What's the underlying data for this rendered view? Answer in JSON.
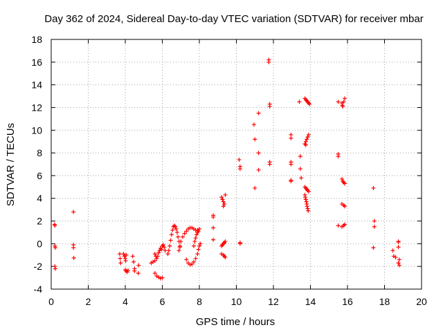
{
  "chart_data": {
    "type": "scatter",
    "title": "Day 362 of 2024, Sidereal Day-to-day VTEC variation (SDTVAR) for receiver mbar",
    "xlabel": "GPS time / hours",
    "ylabel": "SDTVAR / TECUs",
    "xlim": [
      0,
      20
    ],
    "ylim": [
      -4,
      18
    ],
    "xticks": [
      0,
      2,
      4,
      6,
      8,
      10,
      12,
      14,
      16,
      18,
      20
    ],
    "yticks": [
      -4,
      -2,
      0,
      2,
      4,
      6,
      8,
      10,
      12,
      14,
      16,
      18
    ],
    "grid": true,
    "marker": "+",
    "color": "#ff0000",
    "series": [
      {
        "name": "SDTVAR",
        "points": [
          [
            0.18,
            1.7
          ],
          [
            0.2,
            1.6
          ],
          [
            0.2,
            -0.2
          ],
          [
            0.22,
            -0.35
          ],
          [
            0.2,
            -2.0
          ],
          [
            0.22,
            -2.2
          ],
          [
            1.2,
            2.8
          ],
          [
            1.2,
            -0.1
          ],
          [
            1.2,
            -0.35
          ],
          [
            1.22,
            -1.25
          ],
          [
            3.7,
            -0.9
          ],
          [
            3.72,
            -1.3
          ],
          [
            3.75,
            -1.7
          ],
          [
            3.9,
            -0.9
          ],
          [
            3.95,
            -1.1
          ],
          [
            4.0,
            -1.3
          ],
          [
            4.02,
            -1.5
          ],
          [
            4.05,
            -1.0
          ],
          [
            4.0,
            -2.3
          ],
          [
            4.05,
            -2.4
          ],
          [
            4.1,
            -2.5
          ],
          [
            4.15,
            -2.35
          ],
          [
            4.4,
            -1.1
          ],
          [
            4.45,
            -1.6
          ],
          [
            4.5,
            -2.2
          ],
          [
            4.5,
            -2.4
          ],
          [
            4.7,
            -2.6
          ],
          [
            4.72,
            -1.9
          ],
          [
            5.4,
            -1.7
          ],
          [
            5.5,
            -1.6
          ],
          [
            5.6,
            -1.5
          ],
          [
            5.6,
            -2.6
          ],
          [
            5.7,
            -2.85
          ],
          [
            5.8,
            -2.95
          ],
          [
            5.9,
            -3.05
          ],
          [
            6.0,
            -3.0
          ],
          [
            5.6,
            -0.9
          ],
          [
            5.65,
            -1.1
          ],
          [
            5.7,
            -1.3
          ],
          [
            5.75,
            -1.1
          ],
          [
            5.8,
            -0.8
          ],
          [
            5.85,
            -0.6
          ],
          [
            5.9,
            -0.4
          ],
          [
            5.95,
            -0.5
          ],
          [
            6.0,
            -0.2
          ],
          [
            6.05,
            -0.1
          ],
          [
            6.1,
            -0.3
          ],
          [
            6.15,
            -0.6
          ],
          [
            6.3,
            -0.9
          ],
          [
            6.35,
            -0.6
          ],
          [
            6.4,
            -0.2
          ],
          [
            6.45,
            0.3
          ],
          [
            6.5,
            0.8
          ],
          [
            6.55,
            1.2
          ],
          [
            6.6,
            1.5
          ],
          [
            6.65,
            1.6
          ],
          [
            6.7,
            1.5
          ],
          [
            6.75,
            1.3
          ],
          [
            6.8,
            1.0
          ],
          [
            6.85,
            0.6
          ],
          [
            6.9,
            0.2
          ],
          [
            6.95,
            -0.3
          ],
          [
            6.9,
            -0.6
          ],
          [
            6.95,
            -0.2
          ],
          [
            7.0,
            0.2
          ],
          [
            7.1,
            0.6
          ],
          [
            7.2,
            0.9
          ],
          [
            7.3,
            1.1
          ],
          [
            7.4,
            1.3
          ],
          [
            7.5,
            1.4
          ],
          [
            7.6,
            1.4
          ],
          [
            7.7,
            1.3
          ],
          [
            7.8,
            1.2
          ],
          [
            7.9,
            1.2
          ],
          [
            8.0,
            1.3
          ],
          [
            7.3,
            -1.4
          ],
          [
            7.4,
            -1.7
          ],
          [
            7.5,
            -1.85
          ],
          [
            7.6,
            -1.8
          ],
          [
            7.7,
            -1.6
          ],
          [
            7.8,
            -1.3
          ],
          [
            7.9,
            -0.9
          ],
          [
            7.95,
            -0.5
          ],
          [
            8.0,
            -0.2
          ],
          [
            8.05,
            0.0
          ],
          [
            7.7,
            -0.2
          ],
          [
            7.75,
            0.2
          ],
          [
            7.8,
            0.5
          ],
          [
            7.85,
            0.8
          ],
          [
            7.9,
            1.0
          ],
          [
            7.95,
            1.1
          ],
          [
            8.75,
            2.5
          ],
          [
            8.75,
            2.35
          ],
          [
            8.75,
            1.4
          ],
          [
            8.75,
            0.35
          ],
          [
            9.2,
            4.1
          ],
          [
            9.25,
            3.9
          ],
          [
            9.3,
            3.7
          ],
          [
            9.35,
            3.5
          ],
          [
            9.3,
            3.3
          ],
          [
            9.4,
            4.3
          ],
          [
            9.2,
            -0.2
          ],
          [
            9.25,
            -0.1
          ],
          [
            9.3,
            0.0
          ],
          [
            9.35,
            0.1
          ],
          [
            9.4,
            0.2
          ],
          [
            9.2,
            -0.9
          ],
          [
            9.3,
            -1.0
          ],
          [
            9.35,
            -1.1
          ],
          [
            9.4,
            -1.2
          ],
          [
            10.15,
            7.4
          ],
          [
            10.2,
            6.8
          ],
          [
            10.2,
            6.6
          ],
          [
            10.2,
            0.1
          ],
          [
            10.2,
            0.0
          ],
          [
            10.95,
            10.5
          ],
          [
            11.0,
            9.2
          ],
          [
            11.0,
            4.9
          ],
          [
            11.2,
            11.5
          ],
          [
            11.2,
            8.0
          ],
          [
            11.2,
            6.5
          ],
          [
            11.75,
            16.2
          ],
          [
            11.75,
            16.0
          ],
          [
            11.8,
            12.3
          ],
          [
            11.8,
            12.1
          ],
          [
            11.8,
            7.2
          ],
          [
            11.8,
            7.0
          ],
          [
            12.95,
            9.6
          ],
          [
            12.95,
            9.3
          ],
          [
            12.95,
            7.2
          ],
          [
            12.95,
            7.0
          ],
          [
            12.95,
            5.6
          ],
          [
            12.95,
            5.5
          ],
          [
            13.4,
            12.5
          ],
          [
            13.45,
            7.7
          ],
          [
            13.45,
            6.6
          ],
          [
            13.5,
            5.8
          ],
          [
            13.7,
            12.8
          ],
          [
            13.75,
            12.7
          ],
          [
            13.8,
            12.6
          ],
          [
            13.85,
            12.5
          ],
          [
            13.9,
            12.4
          ],
          [
            13.95,
            12.3
          ],
          [
            13.7,
            8.8
          ],
          [
            13.75,
            9.0
          ],
          [
            13.8,
            9.2
          ],
          [
            13.85,
            9.4
          ],
          [
            13.9,
            9.6
          ],
          [
            13.75,
            8.7
          ],
          [
            13.7,
            5.0
          ],
          [
            13.75,
            4.9
          ],
          [
            13.8,
            4.8
          ],
          [
            13.85,
            4.7
          ],
          [
            13.9,
            4.6
          ],
          [
            13.7,
            4.3
          ],
          [
            13.72,
            4.1
          ],
          [
            13.75,
            3.9
          ],
          [
            13.78,
            3.7
          ],
          [
            13.8,
            3.5
          ],
          [
            13.82,
            3.3
          ],
          [
            13.85,
            3.1
          ],
          [
            13.88,
            2.9
          ],
          [
            15.5,
            12.5
          ],
          [
            15.7,
            12.4
          ],
          [
            15.72,
            12.2
          ],
          [
            15.75,
            12.1
          ],
          [
            15.8,
            12.5
          ],
          [
            15.85,
            12.8
          ],
          [
            15.5,
            7.9
          ],
          [
            15.5,
            7.7
          ],
          [
            15.5,
            1.6
          ],
          [
            15.7,
            5.7
          ],
          [
            15.75,
            5.5
          ],
          [
            15.8,
            5.4
          ],
          [
            15.85,
            5.3
          ],
          [
            15.7,
            3.5
          ],
          [
            15.8,
            3.4
          ],
          [
            15.85,
            3.3
          ],
          [
            15.7,
            1.5
          ],
          [
            15.8,
            1.6
          ],
          [
            15.85,
            1.7
          ],
          [
            17.4,
            4.9
          ],
          [
            17.45,
            2.0
          ],
          [
            17.45,
            1.5
          ],
          [
            17.4,
            -0.35
          ],
          [
            18.45,
            -0.6
          ],
          [
            18.5,
            -1.1
          ],
          [
            18.6,
            -1.2
          ],
          [
            18.75,
            0.2
          ],
          [
            18.75,
            0.15
          ],
          [
            18.75,
            -0.3
          ],
          [
            18.75,
            -1.7
          ],
          [
            18.8,
            -1.9
          ],
          [
            18.8,
            -1.4
          ]
        ]
      }
    ]
  }
}
